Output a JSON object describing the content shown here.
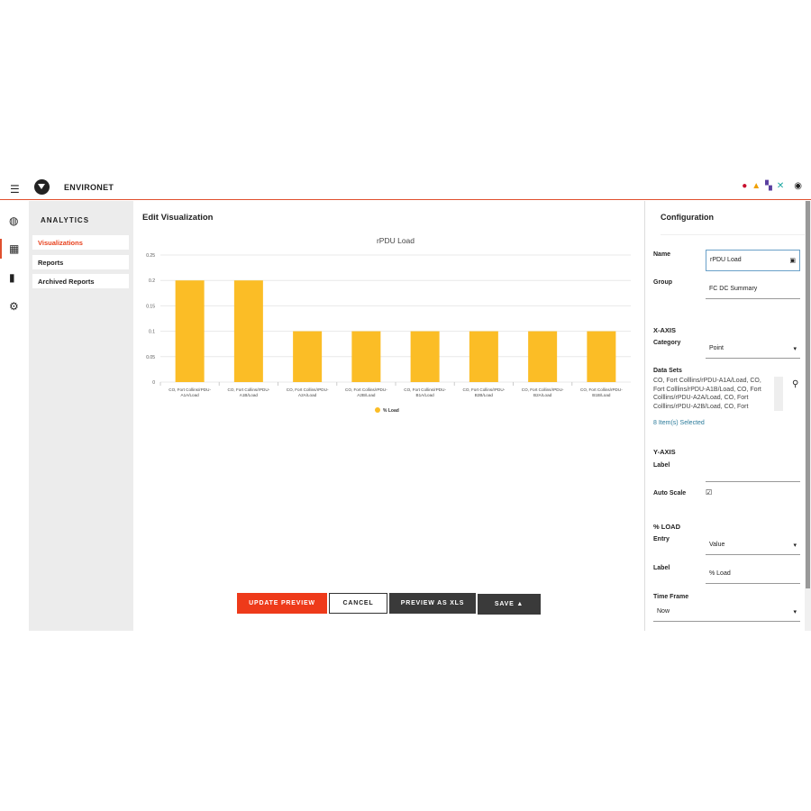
{
  "app": {
    "title": "ENVIRONET"
  },
  "header_icons": [
    "alert-critical-icon",
    "warning-icon",
    "network-icon",
    "tools-icon",
    "user-icon"
  ],
  "rail_icons": [
    "globe-icon",
    "analytics-icon",
    "device-icon",
    "gear-icon"
  ],
  "sidebar": {
    "title": "ANALYTICS",
    "items": [
      {
        "label": "Visualizations",
        "active": true
      },
      {
        "label": "Reports"
      },
      {
        "label": "Archived Reports"
      }
    ]
  },
  "main": {
    "title": "Edit Visualization",
    "buttons": {
      "update": "UPDATE PREVIEW",
      "cancel": "CANCEL",
      "preview_xls": "PREVIEW AS XLS",
      "save": "SAVE"
    }
  },
  "colors": {
    "accent": "#e8401c",
    "bar": "#fbbd26",
    "dark": "#3a3a3a"
  },
  "chart_data": {
    "type": "bar",
    "title": "rPDU Load",
    "xlabel": "",
    "ylabel": "",
    "ylim": [
      0,
      0.25
    ],
    "yticks": [
      "0",
      "0.05",
      "0.1",
      "0.15",
      "0.2",
      "0.25"
    ],
    "categories": [
      "CO, Fort Collins/rPDU-A1A/Load",
      "CO, Fort Collins/rPDU-A1B/Load",
      "CO, Fort Collins/rPDU-A2A/Load",
      "CO, Fort Collins/rPDU-A2B/Load",
      "CO, Fort Collins/rPDU-B1A/Load",
      "CO, Fort Collins/rPDU-B2B/Load",
      "CO, Fort Collins/rPDU-B2A/Load",
      "CO, Fort Collins/rPDU-B1B/Load"
    ],
    "series": [
      {
        "name": "% Load",
        "values": [
          0.2,
          0.2,
          0.1,
          0.1,
          0.1,
          0.1,
          0.1,
          0.1
        ]
      }
    ],
    "grid": true,
    "legend": "bottom"
  },
  "config": {
    "title": "Configuration",
    "name_label": "Name",
    "name_value": "rPDU Load",
    "group_label": "Group",
    "group_value": "FC DC Summary",
    "xaxis": "X-AXIS",
    "category_label": "Category",
    "category_value": "Point",
    "datasets_label": "Data Sets",
    "datasets_value": "CO, Fort Colllins/rPDU-A1A/Load, CO, Fort Colllins/rPDU-A1B/Load, CO, Fort Colllins/rPDU-A2A/Load, CO, Fort Colllins/rPDU-A2B/Load, CO, Fort",
    "selected": "8 Item(s) Selected",
    "yaxis": "Y-AXIS",
    "ylabel_label": "Label",
    "ylabel_value": "",
    "autoscale_label": "Auto Scale",
    "autoscale": true,
    "load_section": "% LOAD",
    "entry_label": "Entry",
    "entry_value": "Value",
    "label_label": "Label",
    "label_value": "% Load",
    "timeframe_label": "Time Frame",
    "timeframe_value": "Now"
  }
}
